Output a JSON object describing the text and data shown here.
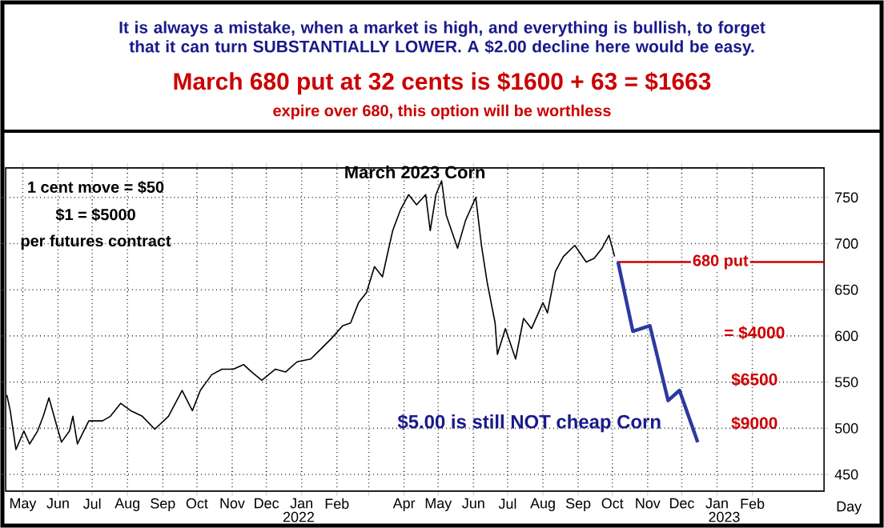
{
  "chart_data": {
    "type": "line",
    "title": "March 2023 Corn",
    "xlabel": "Day",
    "annotations": [
      "It is always a mistake, when a market is high, and everything is bullish, to forget that it can turn SUBSTANTIALLY LOWER. A $2.00 decline here would be easy.",
      "March 680 put at 32 cents is $1600 + 63 = $1663",
      "expire over 680, this option will be worthless",
      "1 cent move = $50",
      "$1 = $5000",
      "per futures contract",
      "= $4000",
      "$6500",
      "$9000",
      "$5.00 is still NOT cheap Corn",
      "2022",
      "2023"
    ],
    "xlim": [
      "2021-05-01",
      "2023-04-20"
    ],
    "ylim": [
      432,
      782
    ],
    "yticks": [
      450,
      500,
      550,
      600,
      650,
      700,
      750
    ],
    "xticks": [
      {
        "value": "2021-05-16",
        "label": "May"
      },
      {
        "value": "2021-06-16",
        "label": "Jun"
      },
      {
        "value": "2021-07-16",
        "label": "Jul"
      },
      {
        "value": "2021-08-16",
        "label": "Aug"
      },
      {
        "value": "2021-09-16",
        "label": "Sep"
      },
      {
        "value": "2021-10-16",
        "label": "Oct"
      },
      {
        "value": "2021-11-16",
        "label": "Nov"
      },
      {
        "value": "2021-12-16",
        "label": "Dec"
      },
      {
        "value": "2022-01-16",
        "label": "Jan"
      },
      {
        "value": "2022-02-16",
        "label": "Feb"
      },
      {
        "value": "2022-03-16",
        "label": null
      },
      {
        "value": "2022-04-16",
        "label": "Apr"
      },
      {
        "value": "2022-05-16",
        "label": "May"
      },
      {
        "value": "2022-06-16",
        "label": "Jun"
      },
      {
        "value": "2022-07-16",
        "label": "Jul"
      },
      {
        "value": "2022-08-16",
        "label": "Aug"
      },
      {
        "value": "2022-09-16",
        "label": "Sep"
      },
      {
        "value": "2022-10-16",
        "label": "Oct"
      },
      {
        "value": "2022-11-16",
        "label": "Nov"
      },
      {
        "value": "2022-12-16",
        "label": "Dec"
      },
      {
        "value": "2023-01-16",
        "label": "Jan"
      },
      {
        "value": "2023-02-16",
        "label": "Feb"
      }
    ],
    "grid": true,
    "series": [
      {
        "color": "#000000",
        "x": [
          "2021-05-02",
          "2021-05-05",
          "2021-05-10",
          "2021-05-17",
          "2021-05-22",
          "2021-05-29",
          "2021-06-03",
          "2021-06-08",
          "2021-06-15",
          "2021-06-19",
          "2021-06-26",
          "2021-06-29",
          "2021-07-03",
          "2021-07-13",
          "2021-07-25",
          "2021-08-01",
          "2021-08-10",
          "2021-08-19",
          "2021-08-29",
          "2021-09-09",
          "2021-09-21",
          "2021-10-03",
          "2021-10-12",
          "2021-10-19",
          "2021-10-29",
          "2021-11-07",
          "2021-11-17",
          "2021-11-26",
          "2021-12-03",
          "2021-12-12",
          "2021-12-24",
          "2022-01-02",
          "2022-01-12",
          "2022-01-24",
          "2022-02-02",
          "2022-02-11",
          "2022-02-21",
          "2022-02-28",
          "2022-03-07",
          "2022-03-14",
          "2022-03-21",
          "2022-03-28",
          "2022-04-02",
          "2022-04-06",
          "2022-04-13",
          "2022-04-20",
          "2022-04-27",
          "2022-05-05",
          "2022-05-09",
          "2022-05-14",
          "2022-05-19",
          "2022-05-23",
          "2022-06-02",
          "2022-06-09",
          "2022-06-18",
          "2022-06-23",
          "2022-06-28",
          "2022-07-05",
          "2022-07-07",
          "2022-07-14",
          "2022-07-23",
          "2022-07-30",
          "2022-08-06",
          "2022-08-16",
          "2022-08-20",
          "2022-08-27",
          "2022-09-03",
          "2022-09-13",
          "2022-09-23",
          "2022-09-30",
          "2022-10-07",
          "2022-10-13",
          "2022-10-18"
        ],
        "values": [
          536,
          519,
          477,
          497,
          483,
          497,
          513,
          533,
          502,
          485,
          497,
          513,
          483,
          508,
          508,
          513,
          527,
          519,
          513,
          499,
          513,
          541,
          519,
          541,
          558,
          564,
          564,
          569,
          561,
          552,
          564,
          561,
          572,
          575,
          586,
          597,
          611,
          614,
          636,
          647,
          675,
          664,
          692,
          714,
          737,
          753,
          742,
          753,
          714,
          753,
          768,
          731,
          695,
          725,
          750,
          698,
          658,
          614,
          580,
          608,
          575,
          619,
          608,
          636,
          625,
          670,
          686,
          698,
          680,
          684,
          695,
          709,
          686
        ]
      },
      {
        "name": "680 put",
        "color": "#cc0000",
        "x": [
          "2022-10-20",
          "2023-04-20"
        ],
        "values": [
          680,
          680
        ]
      },
      {
        "color": "#2b3aa0",
        "x": [
          "2022-10-21",
          "2022-11-03",
          "2022-11-18",
          "2022-12-04",
          "2022-12-14",
          "2022-12-30"
        ],
        "values": [
          680,
          605,
          611,
          530,
          541,
          485
        ]
      }
    ]
  }
}
